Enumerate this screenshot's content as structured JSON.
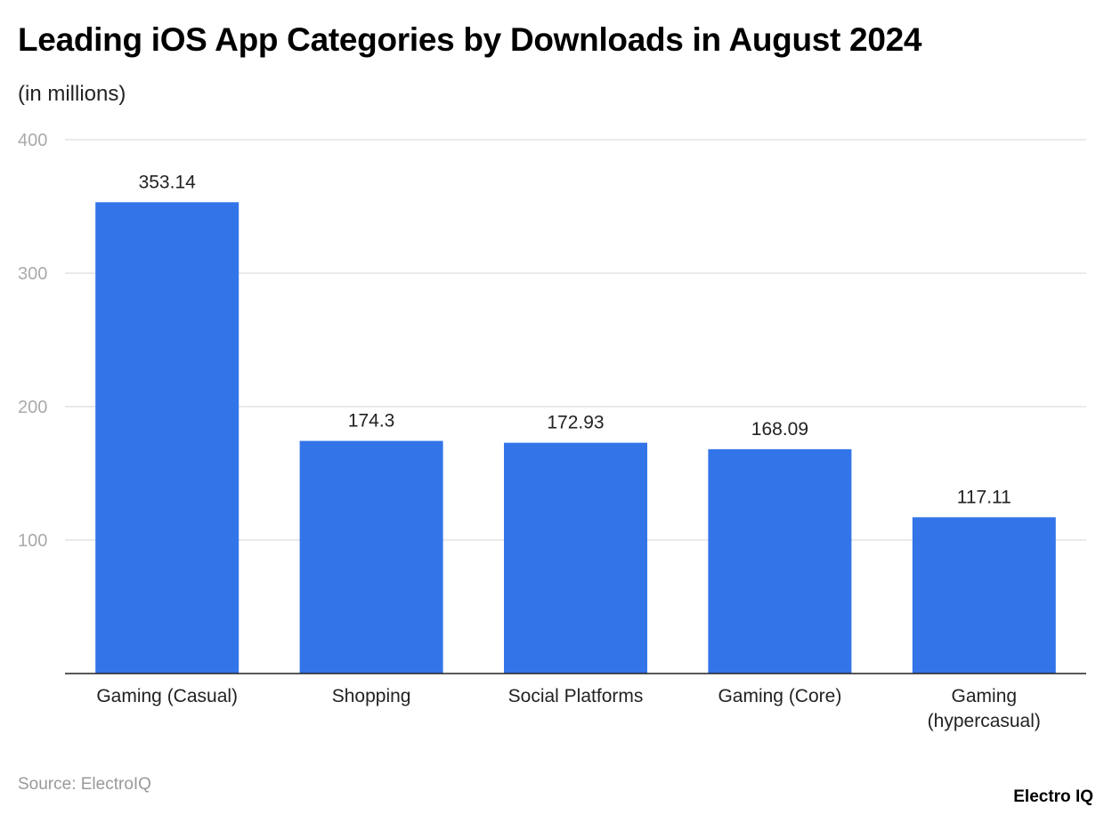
{
  "chart_data": {
    "type": "bar",
    "title": "Leading iOS App Categories by Downloads in August 2024",
    "subtitle": "(in millions)",
    "categories": [
      "Gaming (Casual)",
      "Shopping",
      "Social Platforms",
      "Gaming (Core)",
      "Gaming (hypercasual)"
    ],
    "values": [
      353.14,
      174.3,
      172.93,
      168.09,
      117.11
    ],
    "data_labels": [
      "353.14",
      "174.3",
      "172.93",
      "168.09",
      "117.11"
    ],
    "yticks": [
      100,
      200,
      300,
      400
    ],
    "ylim": [
      0,
      400
    ],
    "xlabel": "",
    "ylabel": "",
    "grid": true,
    "bar_color": "#3375E8"
  },
  "source": "Source: ElectroIQ",
  "logo": "Electro IQ"
}
